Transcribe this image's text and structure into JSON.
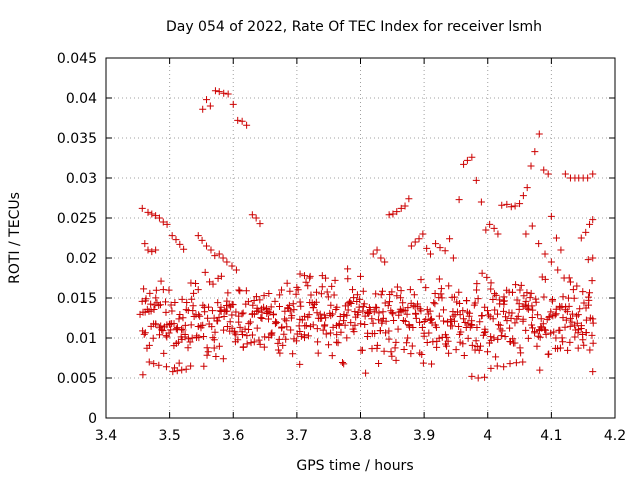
{
  "chart_data": {
    "type": "scatter",
    "title": "Day 054 of 2022, Rate Of TEC Index for receiver lsmh",
    "xlabel": "GPS time / hours",
    "ylabel": "ROTI / TECUs",
    "xlim": [
      3.4,
      4.2
    ],
    "ylim": [
      0,
      0.045
    ],
    "x_ticks": [
      "3.4",
      "3.5",
      "3.6",
      "3.7",
      "3.8",
      "3.9",
      "4",
      "4.1",
      "4.2"
    ],
    "y_ticks": [
      "0",
      "0.005",
      "0.01",
      "0.015",
      "0.02",
      "0.025",
      "0.03",
      "0.035",
      "0.04",
      "0.045"
    ],
    "grid": true,
    "marker": "+",
    "marker_color": "#cc0000",
    "series": [
      {
        "values": [
          [
            3.457,
            0.0262
          ],
          [
            3.461,
            0.0218
          ],
          [
            3.466,
            0.0257
          ],
          [
            3.472,
            0.0255
          ],
          [
            3.478,
            0.0253
          ],
          [
            3.484,
            0.025
          ],
          [
            3.49,
            0.0245
          ],
          [
            3.496,
            0.0242
          ],
          [
            3.504,
            0.0228
          ],
          [
            3.51,
            0.0223
          ],
          [
            3.466,
            0.021
          ],
          [
            3.472,
            0.0208
          ],
          [
            3.478,
            0.021
          ],
          [
            3.516,
            0.0217
          ],
          [
            3.522,
            0.0211
          ],
          [
            3.458,
            0.0054
          ],
          [
            3.468,
            0.007
          ],
          [
            3.475,
            0.0068
          ],
          [
            3.483,
            0.0066
          ],
          [
            3.495,
            0.0064
          ],
          [
            3.505,
            0.0058
          ],
          [
            3.512,
            0.0059
          ],
          [
            3.519,
            0.006
          ],
          [
            3.526,
            0.0061
          ],
          [
            3.533,
            0.0065
          ],
          [
            3.552,
            0.0386
          ],
          [
            3.558,
            0.0398
          ],
          [
            3.564,
            0.039
          ],
          [
            3.572,
            0.0409
          ],
          [
            3.578,
            0.0408
          ],
          [
            3.585,
            0.0406
          ],
          [
            3.592,
            0.0405
          ],
          [
            3.6,
            0.0392
          ],
          [
            3.607,
            0.0372
          ],
          [
            3.614,
            0.0371
          ],
          [
            3.621,
            0.0366
          ],
          [
            3.545,
            0.0228
          ],
          [
            3.551,
            0.0222
          ],
          [
            3.558,
            0.0215
          ],
          [
            3.565,
            0.021
          ],
          [
            3.571,
            0.0203
          ],
          [
            3.578,
            0.0205
          ],
          [
            3.584,
            0.02
          ],
          [
            3.59,
            0.0195
          ],
          [
            3.598,
            0.019
          ],
          [
            3.605,
            0.0185
          ],
          [
            3.63,
            0.0254
          ],
          [
            3.636,
            0.025
          ],
          [
            3.642,
            0.0243
          ],
          [
            3.705,
            0.018
          ],
          [
            3.712,
            0.0178
          ],
          [
            3.72,
            0.0175
          ],
          [
            3.74,
            0.0178
          ],
          [
            3.76,
            0.0172
          ],
          [
            3.78,
            0.0174
          ],
          [
            3.8,
            0.0177
          ],
          [
            3.82,
            0.0205
          ],
          [
            3.826,
            0.021
          ],
          [
            3.832,
            0.02
          ],
          [
            3.838,
            0.0195
          ],
          [
            3.845,
            0.0254
          ],
          [
            3.851,
            0.0255
          ],
          [
            3.857,
            0.0258
          ],
          [
            3.864,
            0.0262
          ],
          [
            3.87,
            0.0265
          ],
          [
            3.876,
            0.0274
          ],
          [
            3.88,
            0.0215
          ],
          [
            3.886,
            0.022
          ],
          [
            3.892,
            0.0224
          ],
          [
            3.898,
            0.023
          ],
          [
            3.904,
            0.0212
          ],
          [
            3.91,
            0.0205
          ],
          [
            3.918,
            0.0218
          ],
          [
            3.925,
            0.0213
          ],
          [
            3.933,
            0.0209
          ],
          [
            3.94,
            0.0224
          ],
          [
            3.946,
            0.02
          ],
          [
            3.955,
            0.0273
          ],
          [
            3.962,
            0.0317
          ],
          [
            3.968,
            0.0322
          ],
          [
            3.975,
            0.0326
          ],
          [
            3.982,
            0.0297
          ],
          [
            3.99,
            0.027
          ],
          [
            3.997,
            0.0235
          ],
          [
            4.003,
            0.0242
          ],
          [
            4.01,
            0.0237
          ],
          [
            4.016,
            0.023
          ],
          [
            4.022,
            0.0266
          ],
          [
            4.03,
            0.0267
          ],
          [
            4.037,
            0.0264
          ],
          [
            4.043,
            0.0265
          ],
          [
            4.05,
            0.0268
          ],
          [
            4.056,
            0.0278
          ],
          [
            4.062,
            0.0288
          ],
          [
            4.068,
            0.0315
          ],
          [
            4.074,
            0.0333
          ],
          [
            4.081,
            0.0355
          ],
          [
            4.088,
            0.031
          ],
          [
            4.095,
            0.0305
          ],
          [
            4.1,
            0.0252
          ],
          [
            4.108,
            0.0225
          ],
          [
            4.115,
            0.021
          ],
          [
            4.122,
            0.0305
          ],
          [
            4.13,
            0.03
          ],
          [
            4.137,
            0.03
          ],
          [
            4.143,
            0.03
          ],
          [
            4.15,
            0.03
          ],
          [
            4.157,
            0.03
          ],
          [
            4.165,
            0.0305
          ],
          [
            4.165,
            0.0248
          ],
          [
            4.16,
            0.0242
          ],
          [
            4.154,
            0.0232
          ],
          [
            4.147,
            0.0225
          ],
          [
            4.165,
            0.02
          ],
          [
            4.158,
            0.0198
          ],
          [
            3.975,
            0.0052
          ],
          [
            3.985,
            0.005
          ],
          [
            3.995,
            0.0051
          ],
          [
            4.005,
            0.0062
          ],
          [
            4.015,
            0.0065
          ],
          [
            4.025,
            0.0064
          ],
          [
            4.035,
            0.0068
          ],
          [
            4.045,
            0.0069
          ],
          [
            4.055,
            0.007
          ],
          [
            4.165,
            0.0058
          ],
          [
            4.06,
            0.023
          ],
          [
            4.07,
            0.024
          ],
          [
            4.08,
            0.0218
          ],
          [
            4.09,
            0.0205
          ],
          [
            4.1,
            0.0195
          ],
          [
            4.11,
            0.0185
          ],
          [
            4.12,
            0.0175
          ],
          [
            4.13,
            0.017
          ],
          [
            4.14,
            0.0165
          ]
        ],
        "x_band": [
          3.455,
          4.168
        ],
        "y_band": [
          0.0058,
          0.0185
        ],
        "band_density_points": 720
      }
    ]
  }
}
